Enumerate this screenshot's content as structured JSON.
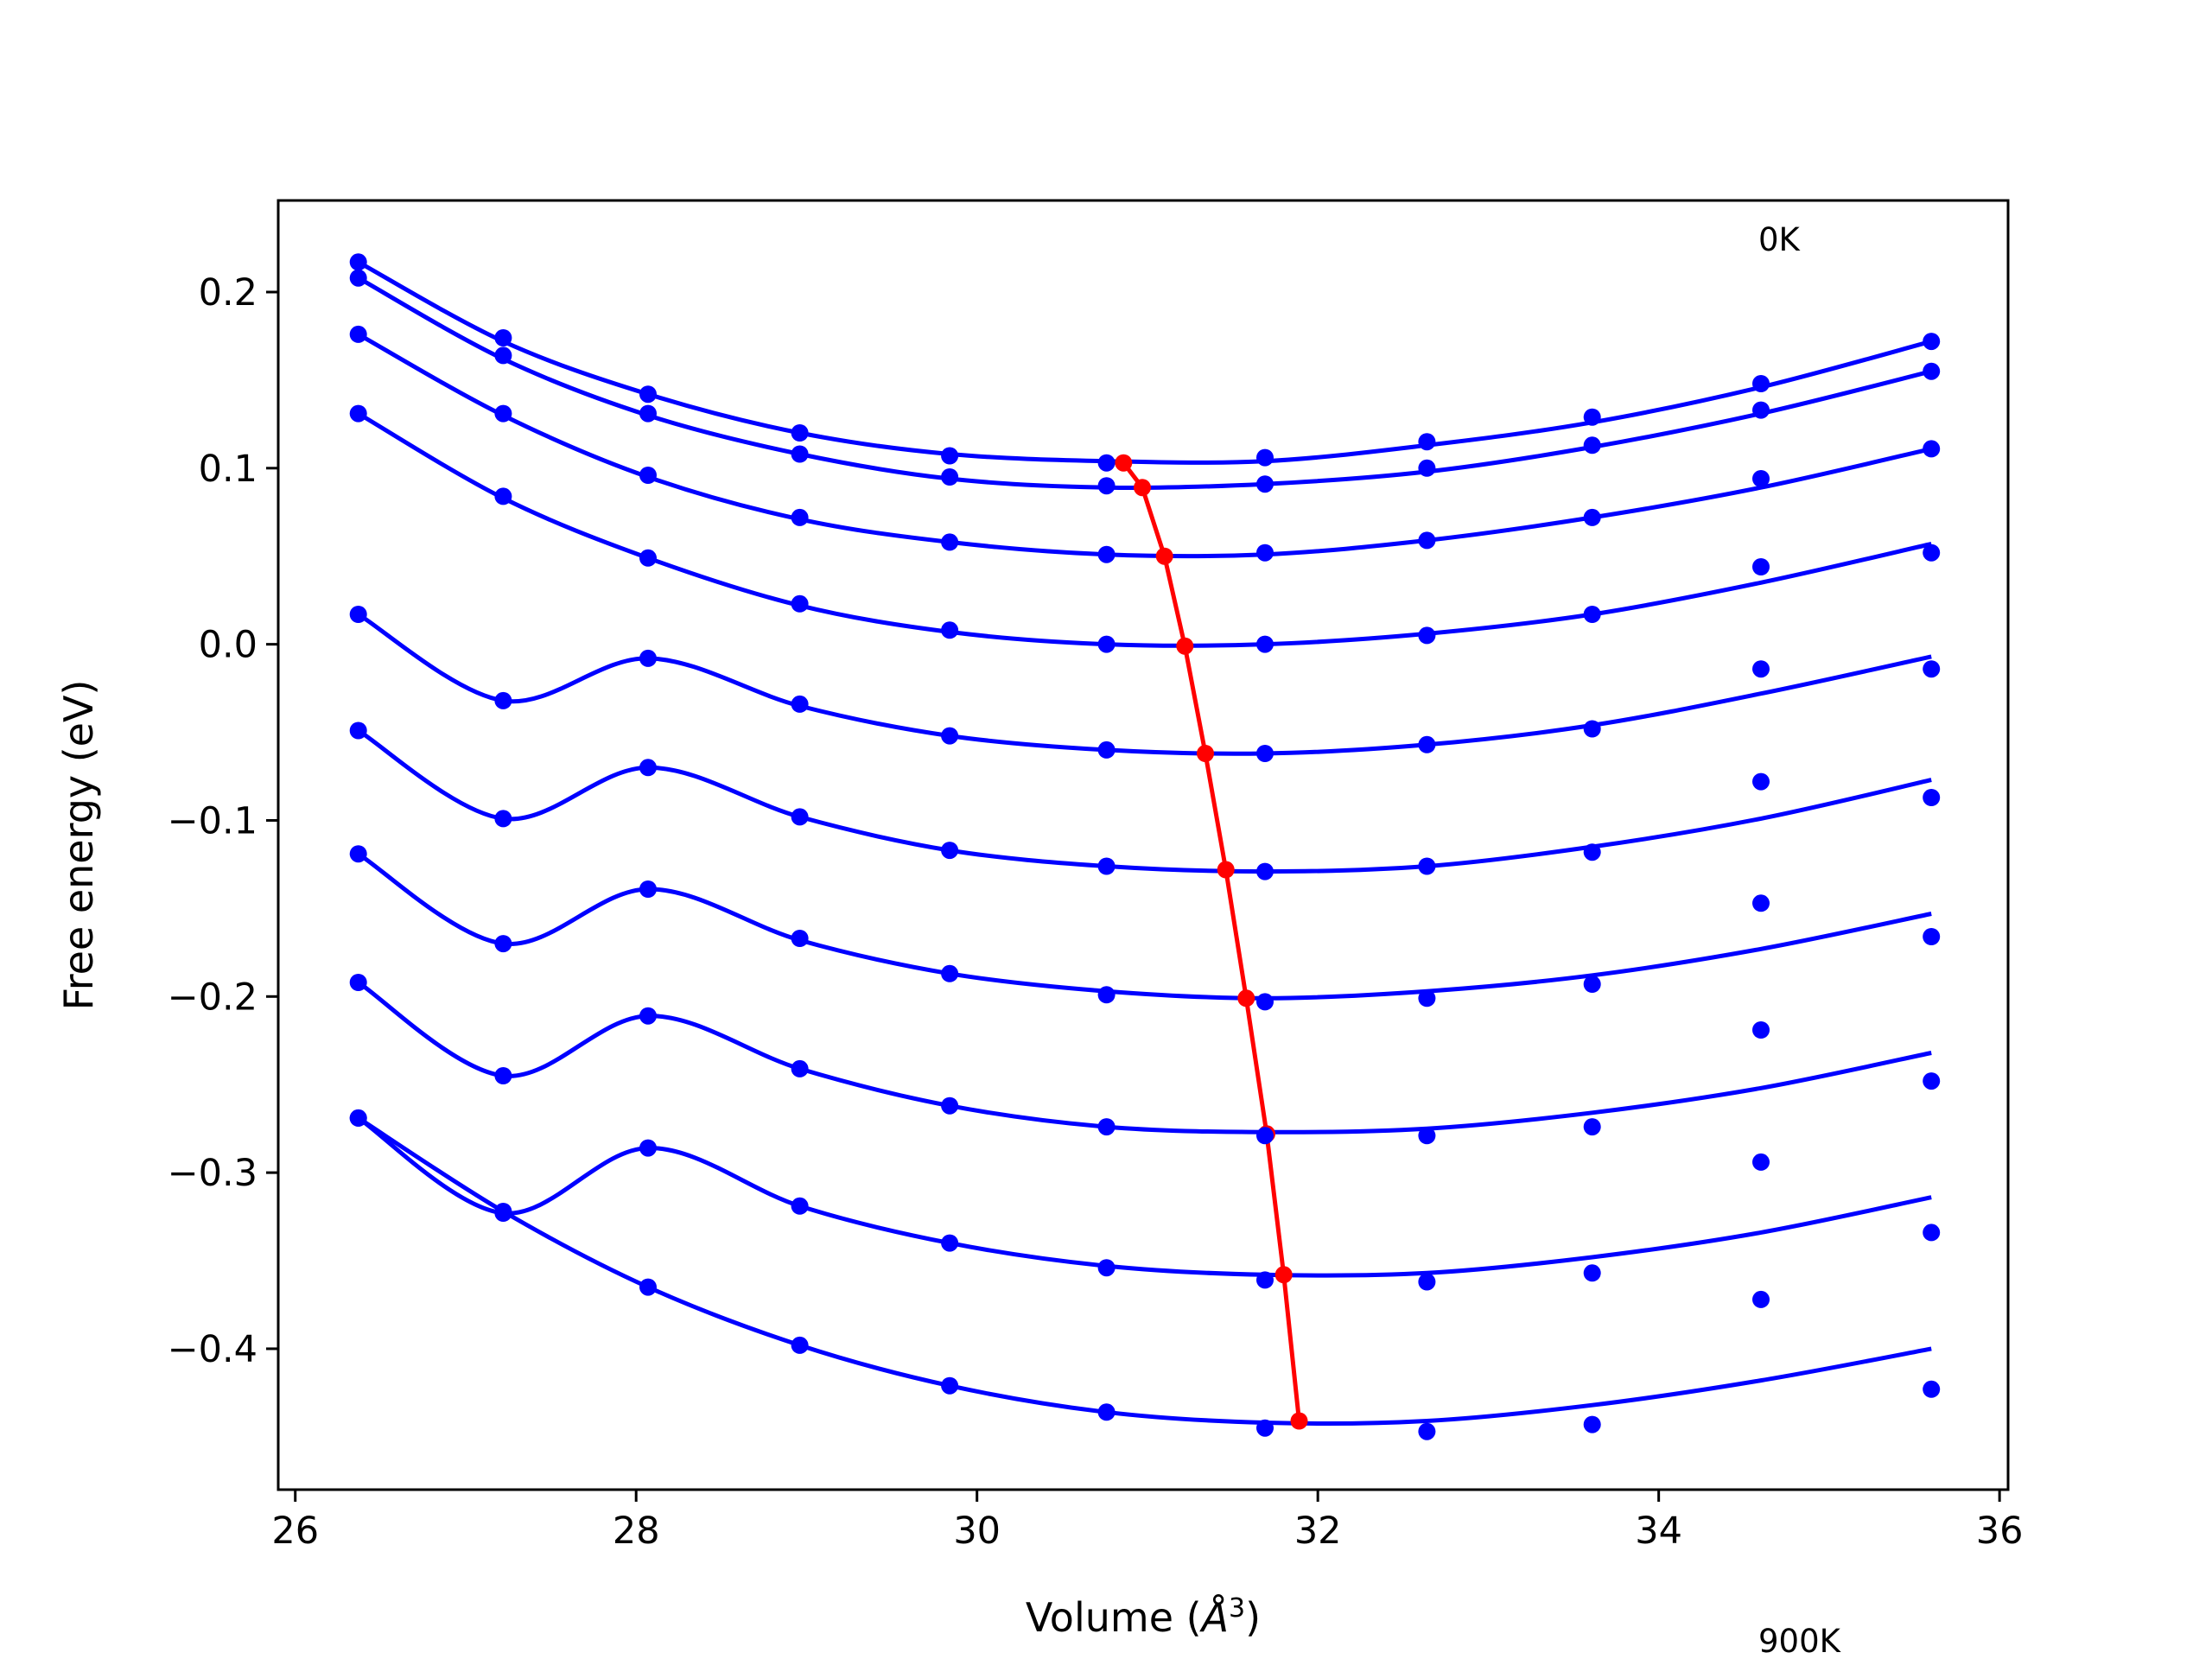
{
  "chart_data": {
    "type": "scatter",
    "xlabel_main": "Volume (",
    "xlabel_unit": "Å",
    "xlabel_sup": "3",
    "xlabel_close": ")",
    "ylabel": "Free energy (eV)",
    "annotations": {
      "top": "0K",
      "bottom": "900K"
    },
    "xlim": [
      25.9,
      36.05
    ],
    "ylim": [
      -0.48,
      0.252
    ],
    "xticks": [
      26,
      28,
      30,
      32,
      34,
      36
    ],
    "xtick_labels": [
      "26",
      "28",
      "30",
      "32",
      "34",
      "36"
    ],
    "yticks": [
      0.2,
      0.1,
      0.0,
      -0.1,
      -0.2,
      -0.3,
      -0.4
    ],
    "ytick_labels": [
      "0.2",
      "0.1",
      "0.0",
      "−0.1",
      "−0.2",
      "−0.3",
      "−0.4"
    ],
    "x": [
      26.37,
      27.22,
      28.07,
      28.96,
      29.84,
      30.76,
      31.69,
      32.64,
      33.61,
      34.6,
      35.6
    ],
    "series": [
      {
        "temperature_index": 0,
        "points": [
          0.217,
          0.174,
          0.142,
          0.12,
          0.107,
          0.103,
          0.106,
          0.115,
          0.129,
          0.148,
          0.172
        ],
        "fit": [
          0.217,
          0.172,
          0.142,
          0.12,
          0.108,
          0.104,
          0.104,
          0.113,
          0.126,
          0.146,
          0.172
        ]
      },
      {
        "temperature_index": 1,
        "points": [
          0.208,
          0.164,
          0.131,
          0.108,
          0.095,
          0.09,
          0.091,
          0.1,
          0.113,
          0.133,
          0.155
        ],
        "fit": [
          0.208,
          0.162,
          0.13,
          0.108,
          0.094,
          0.089,
          0.091,
          0.098,
          0.112,
          0.131,
          0.155
        ]
      },
      {
        "temperature_index": 2,
        "points": [
          0.176,
          0.131,
          0.096,
          0.072,
          0.058,
          0.051,
          0.052,
          0.059,
          0.072,
          0.094,
          0.111
        ],
        "fit": [
          0.176,
          0.13,
          0.095,
          0.071,
          0.058,
          0.051,
          0.051,
          0.059,
          0.072,
          0.089,
          0.111
        ]
      },
      {
        "temperature_index": 3,
        "points": [
          0.131,
          0.084,
          0.049,
          0.023,
          0.008,
          0.0,
          0.0,
          0.005,
          0.017,
          0.044,
          0.052
        ],
        "fit": [
          0.131,
          0.083,
          0.049,
          0.022,
          0.007,
          0.0,
          0.0,
          0.006,
          0.017,
          0.035,
          0.057
        ]
      },
      {
        "temperature_index": 4,
        "points": [
          0.017,
          -0.032,
          -0.008,
          -0.034,
          -0.052,
          -0.06,
          -0.062,
          -0.057,
          -0.048,
          -0.014,
          -0.014
        ],
        "fit": [
          0.017,
          -0.032,
          -0.008,
          -0.035,
          -0.052,
          -0.06,
          -0.062,
          -0.057,
          -0.046,
          -0.028,
          -0.007
        ]
      },
      {
        "temperature_index": 5,
        "points": [
          -0.049,
          -0.099,
          -0.07,
          -0.098,
          -0.117,
          -0.126,
          -0.129,
          -0.126,
          -0.118,
          -0.078,
          -0.087
        ],
        "fit": [
          -0.049,
          -0.099,
          -0.07,
          -0.098,
          -0.117,
          -0.126,
          -0.129,
          -0.126,
          -0.115,
          -0.099,
          -0.077
        ]
      },
      {
        "temperature_index": 6,
        "points": [
          -0.119,
          -0.17,
          -0.139,
          -0.167,
          -0.187,
          -0.199,
          -0.203,
          -0.201,
          -0.193,
          -0.147,
          -0.166
        ],
        "fit": [
          -0.119,
          -0.17,
          -0.139,
          -0.168,
          -0.187,
          -0.197,
          -0.201,
          -0.197,
          -0.188,
          -0.173,
          -0.153
        ]
      },
      {
        "temperature_index": 7,
        "points": [
          -0.192,
          -0.245,
          -0.211,
          -0.241,
          -0.262,
          -0.274,
          -0.279,
          -0.279,
          -0.274,
          -0.219,
          -0.248
        ],
        "fit": [
          -0.192,
          -0.245,
          -0.211,
          -0.241,
          -0.262,
          -0.274,
          -0.277,
          -0.275,
          -0.266,
          -0.252,
          -0.232
        ]
      },
      {
        "temperature_index": 8,
        "points": [
          -0.269,
          -0.323,
          -0.286,
          -0.319,
          -0.34,
          -0.354,
          -0.361,
          -0.362,
          -0.357,
          -0.294,
          -0.334
        ],
        "fit": [
          -0.269,
          -0.323,
          -0.286,
          -0.319,
          -0.34,
          -0.353,
          -0.358,
          -0.357,
          -0.348,
          -0.334,
          -0.314
        ]
      },
      {
        "temperature_index": 9,
        "points": [
          -0.269,
          -0.322,
          -0.365,
          -0.398,
          -0.421,
          -0.436,
          -0.445,
          -0.447,
          -0.443,
          -0.372,
          -0.423
        ],
        "fit": [
          -0.269,
          -0.322,
          -0.365,
          -0.398,
          -0.421,
          -0.436,
          -0.442,
          -0.441,
          -0.432,
          -0.418,
          -0.4
        ]
      }
    ],
    "minimum_curve": {
      "color": "#ff0000",
      "x": [
        30.86,
        30.97,
        31.1,
        31.22,
        31.34,
        31.46,
        31.58,
        31.7,
        31.8,
        31.89
      ],
      "y": [
        0.103,
        0.089,
        0.05,
        -0.001,
        -0.062,
        -0.128,
        -0.201,
        -0.278,
        -0.358,
        -0.441
      ]
    },
    "series_color": "#0000ff"
  }
}
